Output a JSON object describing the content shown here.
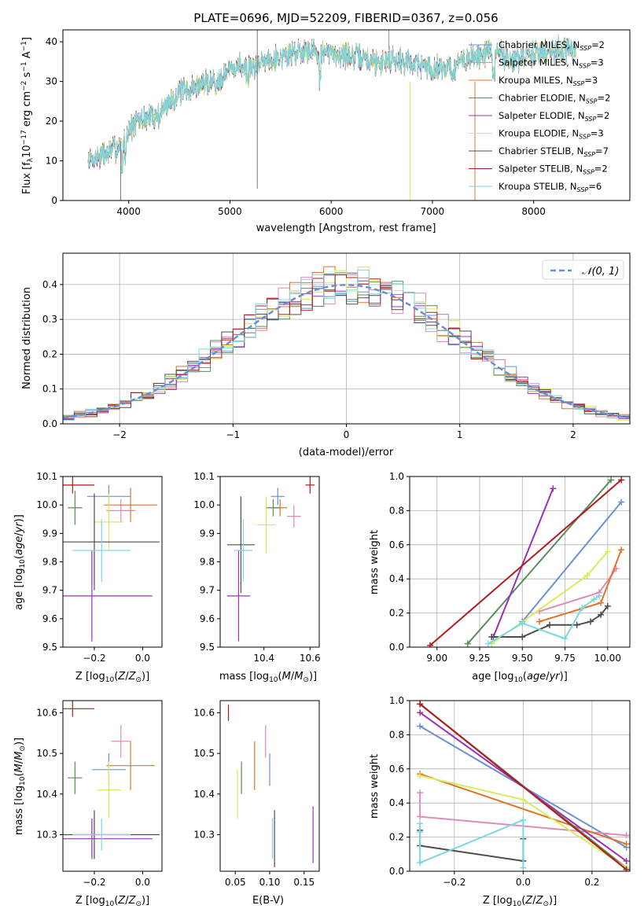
{
  "colors": {
    "Chabrier MILES": "#6b8fd6",
    "Salpeter MILES": "#e08ab8",
    "Kroupa MILES": "#e0742a",
    "Chabrier ELODIE": "#5b8c5a",
    "Salpeter ELODIE": "#9b30b8",
    "Kroupa ELODIE": "#d4ec5e",
    "Chabrier STELIB": "#4d4d4d",
    "Salpeter STELIB": "#b01c1c",
    "Kroupa STELIB": "#7ed6e0",
    "gaussian": "#6b8fd6"
  },
  "chart_data": [
    {
      "id": "spectrum",
      "type": "line",
      "title": "PLATE=0696, MJD=52209, FIBERID=0367, z=0.056",
      "xlabel": "wavelength [Angstrom, rest frame]",
      "ylabel": "Flux [f_λ10^-17 erg cm^-2 s^-1 A^-1]",
      "xlim": [
        3350,
        8950
      ],
      "ylim": [
        0,
        43
      ],
      "xticks": [
        4000,
        5000,
        6000,
        7000,
        8000
      ],
      "yticks": [
        0,
        10,
        20,
        30,
        40
      ],
      "grid": false,
      "legend_position": "upper right",
      "legend": [
        {
          "name": "Chabrier MILES",
          "nssp": "2"
        },
        {
          "name": "Salpeter MILES",
          "nssp": "3"
        },
        {
          "name": "Kroupa MILES",
          "nssp": "3"
        },
        {
          "name": "Chabrier ELODIE",
          "nssp": "2"
        },
        {
          "name": "Salpeter ELODIE",
          "nssp": "2"
        },
        {
          "name": "Kroupa ELODIE",
          "nssp": "3"
        },
        {
          "name": "Chabrier STELIB",
          "nssp": "7"
        },
        {
          "name": "Salpeter STELIB",
          "nssp": "2"
        },
        {
          "name": "Kroupa STELIB",
          "nssp": "6"
        }
      ],
      "continuum_points": [
        [
          3600,
          10
        ],
        [
          3700,
          11
        ],
        [
          3800,
          12
        ],
        [
          3850,
          13
        ],
        [
          3900,
          13.5
        ],
        [
          3950,
          14
        ],
        [
          4000,
          18
        ],
        [
          4100,
          20
        ],
        [
          4200,
          21
        ],
        [
          4300,
          21.5
        ],
        [
          4400,
          25
        ],
        [
          4500,
          27
        ],
        [
          4600,
          28
        ],
        [
          4700,
          29
        ],
        [
          4800,
          30
        ],
        [
          4900,
          31
        ],
        [
          5000,
          33
        ],
        [
          5100,
          34
        ],
        [
          5200,
          33
        ],
        [
          5300,
          35
        ],
        [
          5400,
          36
        ],
        [
          5500,
          36
        ],
        [
          5600,
          37
        ],
        [
          5700,
          38
        ],
        [
          5800,
          38
        ],
        [
          5900,
          37
        ],
        [
          6000,
          37
        ],
        [
          6100,
          37
        ],
        [
          6200,
          36
        ],
        [
          6300,
          36
        ],
        [
          6400,
          35
        ],
        [
          6500,
          35
        ],
        [
          6600,
          36
        ],
        [
          6700,
          35
        ],
        [
          6800,
          35
        ],
        [
          6900,
          34
        ],
        [
          7000,
          33
        ],
        [
          7100,
          34
        ],
        [
          7200,
          33
        ],
        [
          7300,
          35
        ],
        [
          7400,
          36
        ],
        [
          7500,
          37
        ],
        [
          7600,
          37.5
        ],
        [
          7700,
          37
        ],
        [
          7800,
          35
        ],
        [
          8000,
          37
        ],
        [
          8200,
          38
        ],
        [
          8400,
          38
        ]
      ]
    },
    {
      "id": "residuals",
      "type": "histogram",
      "xlabel": "(data-model)/error",
      "ylabel": "Normed distribution",
      "xlim": [
        -2.5,
        2.5
      ],
      "ylim": [
        0,
        0.49
      ],
      "xticks": [
        -2,
        -1,
        0,
        1,
        2
      ],
      "yticks": [
        0.0,
        0.1,
        0.2,
        0.3,
        0.4
      ],
      "grid": true,
      "legend_position": "upper right",
      "legend": "N(0,1)",
      "bin_width": 0.1
    },
    {
      "id": "age_vs_Z",
      "type": "errorbar",
      "xlabel": "Z [log10(Z/Z⊙)]",
      "ylabel": "age  [log10(age/yr)]",
      "xlim": [
        -0.33,
        0.08
      ],
      "ylim": [
        9.5,
        10.1
      ],
      "xticks": [
        -0.2,
        0.0
      ],
      "yticks": [
        9.5,
        9.6,
        9.7,
        9.8,
        9.9,
        10.0,
        10.1
      ],
      "points": [
        {
          "model": "Chabrier MILES",
          "x": -0.14,
          "xerr": 0.09,
          "y": 10.03,
          "yerr": 0.04
        },
        {
          "model": "Salpeter MILES",
          "x": -0.09,
          "xerr": 0.06,
          "y": 9.98,
          "yerr": 0.04
        },
        {
          "model": "Kroupa MILES",
          "x": -0.05,
          "xerr": 0.11,
          "y": 10.0,
          "yerr": 0.06
        },
        {
          "model": "Chabrier ELODIE",
          "x": -0.28,
          "xerr": 0.03,
          "y": 9.99,
          "yerr": 0.06
        },
        {
          "model": "Salpeter ELODIE",
          "x": -0.21,
          "xerr": 0.25,
          "y": 9.68,
          "yerr": 0.16
        },
        {
          "model": "Kroupa ELODIE",
          "x": -0.14,
          "xerr": 0.06,
          "y": 9.94,
          "yerr": 0.1
        },
        {
          "model": "Chabrier STELIB",
          "x": -0.2,
          "xerr": 0.27,
          "y": 9.87,
          "yerr": 0.17
        },
        {
          "model": "Salpeter STELIB",
          "x": -0.29,
          "xerr": 0.09,
          "y": 10.07,
          "yerr": 0.03
        },
        {
          "model": "Kroupa STELIB",
          "x": -0.17,
          "xerr": 0.12,
          "y": 9.84,
          "yerr": 0.11
        }
      ]
    },
    {
      "id": "age_vs_mass",
      "type": "errorbar",
      "xlabel": "mass [log10(M/M⊙)]",
      "ylabel": "",
      "xlim": [
        10.21,
        10.64
      ],
      "ylim": [
        9.5,
        10.1
      ],
      "xticks": [
        10.4,
        10.6
      ],
      "yticks": [
        9.5,
        9.6,
        9.7,
        9.8,
        9.9,
        10.0,
        10.1
      ],
      "points": [
        {
          "model": "Chabrier MILES",
          "x": 10.46,
          "xerr": 0.03,
          "y": 10.03,
          "yerr": 0.03
        },
        {
          "model": "Salpeter MILES",
          "x": 10.53,
          "xerr": 0.03,
          "y": 9.96,
          "yerr": 0.04
        },
        {
          "model": "Kroupa MILES",
          "x": 10.47,
          "xerr": 0.03,
          "y": 9.99,
          "yerr": 0.03
        },
        {
          "model": "Chabrier ELODIE",
          "x": 10.44,
          "xerr": 0.03,
          "y": 9.99,
          "yerr": 0.03
        },
        {
          "model": "Salpeter ELODIE",
          "x": 10.29,
          "xerr": 0.05,
          "y": 9.68,
          "yerr": 0.16
        },
        {
          "model": "Kroupa ELODIE",
          "x": 10.41,
          "xerr": 0.04,
          "y": 9.93,
          "yerr": 0.1
        },
        {
          "model": "Chabrier STELIB",
          "x": 10.3,
          "xerr": 0.06,
          "y": 9.86,
          "yerr": 0.17
        },
        {
          "model": "Salpeter STELIB",
          "x": 10.6,
          "xerr": 0.02,
          "y": 10.07,
          "yerr": 0.03
        },
        {
          "model": "Kroupa STELIB",
          "x": 10.31,
          "xerr": 0.04,
          "y": 9.84,
          "yerr": 0.11
        }
      ]
    },
    {
      "id": "mass_weight_vs_age",
      "type": "line",
      "xlabel": "age  [log10(age/yr)]",
      "ylabel": "mass weight",
      "xlim": [
        8.84,
        10.13
      ],
      "ylim": [
        0,
        1
      ],
      "xticks": [
        9.0,
        9.25,
        9.5,
        9.75,
        10.0
      ],
      "yticks": [
        0.0,
        0.2,
        0.4,
        0.6,
        0.8,
        1.0
      ],
      "grid": true,
      "series": [
        {
          "model": "Chabrier MILES",
          "x": [
            9.5,
            10.08
          ],
          "y": [
            0.15,
            0.85
          ]
        },
        {
          "model": "Salpeter MILES",
          "x": [
            9.6,
            9.95,
            10.05
          ],
          "y": [
            0.21,
            0.32,
            0.46
          ]
        },
        {
          "model": "Kroupa MILES",
          "x": [
            9.6,
            9.96,
            10.08
          ],
          "y": [
            0.15,
            0.26,
            0.57
          ]
        },
        {
          "model": "Chabrier ELODIE",
          "x": [
            9.18,
            10.02
          ],
          "y": [
            0.02,
            0.98
          ]
        },
        {
          "model": "Salpeter ELODIE",
          "x": [
            9.33,
            9.68
          ],
          "y": [
            0.06,
            0.93
          ]
        },
        {
          "model": "Kroupa ELODIE",
          "x": [
            9.32,
            9.88,
            10.0
          ],
          "y": [
            0.02,
            0.42,
            0.56
          ]
        },
        {
          "model": "Chabrier STELIB",
          "x": [
            9.32,
            9.5,
            9.66,
            9.82,
            9.9,
            9.96,
            10.0
          ],
          "y": [
            0.06,
            0.06,
            0.13,
            0.13,
            0.15,
            0.19,
            0.24
          ]
        },
        {
          "model": "Salpeter STELIB",
          "x": [
            8.96,
            10.08
          ],
          "y": [
            0.01,
            0.98
          ]
        },
        {
          "model": "Kroupa STELIB",
          "x": [
            9.3,
            9.5,
            9.75,
            9.85,
            9.92,
            9.95
          ],
          "y": [
            0.02,
            0.14,
            0.05,
            0.23,
            0.28,
            0.3
          ]
        }
      ]
    },
    {
      "id": "mass_vs_Z",
      "type": "errorbar",
      "xlabel": "Z [log10(Z/Z⊙)]",
      "ylabel": "mass [log10(M/M⊙)]",
      "xlim": [
        -0.33,
        0.08
      ],
      "ylim": [
        10.21,
        10.63
      ],
      "xticks": [
        -0.2,
        0.0
      ],
      "yticks": [
        10.3,
        10.4,
        10.5,
        10.6
      ],
      "points": [
        {
          "model": "Chabrier MILES",
          "x": -0.14,
          "xerr": 0.07,
          "y": 10.46,
          "yerr": 0.04
        },
        {
          "model": "Salpeter MILES",
          "x": -0.09,
          "xerr": 0.04,
          "y": 10.53,
          "yerr": 0.04
        },
        {
          "model": "Kroupa MILES",
          "x": -0.05,
          "xerr": 0.1,
          "y": 10.47,
          "yerr": 0.06
        },
        {
          "model": "Chabrier ELODIE",
          "x": -0.28,
          "xerr": 0.03,
          "y": 10.44,
          "yerr": 0.04
        },
        {
          "model": "Salpeter ELODIE",
          "x": -0.21,
          "xerr": 0.25,
          "y": 10.29,
          "yerr": 0.05
        },
        {
          "model": "Kroupa ELODIE",
          "x": -0.14,
          "xerr": 0.05,
          "y": 10.41,
          "yerr": 0.07
        },
        {
          "model": "Chabrier STELIB",
          "x": -0.2,
          "xerr": 0.27,
          "y": 10.3,
          "yerr": 0.06
        },
        {
          "model": "Salpeter STELIB",
          "x": -0.29,
          "xerr": 0.09,
          "y": 10.61,
          "yerr": 0.02
        },
        {
          "model": "Kroupa STELIB",
          "x": -0.17,
          "xerr": 0.12,
          "y": 10.3,
          "yerr": 0.04
        }
      ]
    },
    {
      "id": "mass_vs_ebv",
      "type": "errorbar",
      "xlabel": "E(B-V)",
      "ylabel": "",
      "xlim": [
        0.028,
        0.172
      ],
      "ylim": [
        10.21,
        10.63
      ],
      "xticks": [
        0.05,
        0.1,
        0.15
      ],
      "yticks": [
        10.3,
        10.4,
        10.5,
        10.6
      ],
      "points": [
        {
          "model": "Chabrier MILES",
          "x": 0.1,
          "xerr": 0.0,
          "y": 10.46,
          "yerr": 0.04
        },
        {
          "model": "Salpeter MILES",
          "x": 0.094,
          "xerr": 0.0,
          "y": 10.53,
          "yerr": 0.04
        },
        {
          "model": "Kroupa MILES",
          "x": 0.078,
          "xerr": 0.0,
          "y": 10.47,
          "yerr": 0.06
        },
        {
          "model": "Chabrier ELODIE",
          "x": 0.059,
          "xerr": 0.0,
          "y": 10.44,
          "yerr": 0.04
        },
        {
          "model": "Salpeter ELODIE",
          "x": 0.163,
          "xerr": 0.0,
          "y": 10.3,
          "yerr": 0.07
        },
        {
          "model": "Kroupa ELODIE",
          "x": 0.053,
          "xerr": 0.0,
          "y": 10.4,
          "yerr": 0.06
        },
        {
          "model": "Chabrier STELIB",
          "x": 0.107,
          "xerr": 0.0,
          "y": 10.29,
          "yerr": 0.07
        },
        {
          "model": "Salpeter STELIB",
          "x": 0.04,
          "xerr": 0.0,
          "y": 10.6,
          "yerr": 0.02
        },
        {
          "model": "Kroupa STELIB",
          "x": 0.104,
          "xerr": 0.0,
          "y": 10.29,
          "yerr": 0.05
        }
      ]
    },
    {
      "id": "mass_weight_vs_Z",
      "type": "line",
      "xlabel": "Z [log10(Z/Z⊙)]",
      "ylabel": "mass weight",
      "xlim": [
        -0.33,
        0.31
      ],
      "ylim": [
        0,
        1
      ],
      "xticks": [
        -0.2,
        0.0,
        0.2
      ],
      "yticks": [
        0.0,
        0.2,
        0.4,
        0.6,
        0.8,
        1.0
      ],
      "grid": true,
      "series": [
        {
          "model": "Chabrier MILES",
          "x": [
            -0.3,
            0.3
          ],
          "y": [
            0.85,
            0.14
          ]
        },
        {
          "model": "Salpeter MILES",
          "x": [
            -0.3,
            -0.3,
            0.3
          ],
          "y": [
            0.46,
            0.32,
            0.21
          ]
        },
        {
          "model": "Kroupa MILES",
          "x": [
            -0.3,
            0.3
          ],
          "y": [
            0.57,
            0.16
          ]
        },
        {
          "model": "Chabrier ELODIE",
          "x": [
            -0.3,
            0.3
          ],
          "y": [
            0.98,
            0.02
          ]
        },
        {
          "model": "Salpeter ELODIE",
          "x": [
            -0.3,
            0.3
          ],
          "y": [
            0.93,
            0.06
          ]
        },
        {
          "model": "Kroupa ELODIE",
          "x": [
            -0.3,
            0.0,
            0.3
          ],
          "y": [
            0.56,
            0.42,
            0.02
          ]
        },
        {
          "model": "Chabrier STELIB",
          "x": [
            -0.3,
            -0.3,
            0.0,
            0.0
          ],
          "y": [
            0.24,
            0.15,
            0.06,
            0.19
          ]
        },
        {
          "model": "Salpeter STELIB",
          "x": [
            -0.3,
            0.3
          ],
          "y": [
            0.98,
            0.01
          ]
        },
        {
          "model": "Kroupa STELIB",
          "x": [
            -0.3,
            -0.3,
            -0.3,
            0.0,
            0.0
          ],
          "y": [
            0.28,
            0.23,
            0.05,
            0.3,
            0.02
          ]
        }
      ]
    }
  ]
}
